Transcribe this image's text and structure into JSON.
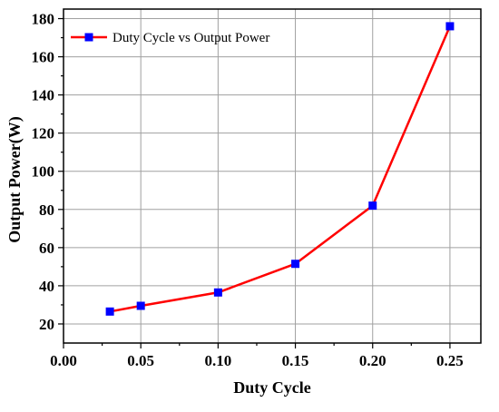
{
  "chart_data": {
    "type": "line",
    "xlabel": "Duty Cycle",
    "ylabel": "Output Power(W)",
    "xlim": [
      0.0,
      0.27
    ],
    "ylim": [
      10,
      185
    ],
    "x_ticks": [
      0.0,
      0.05,
      0.1,
      0.15,
      0.2,
      0.25
    ],
    "x_tick_labels": [
      "0.00",
      "0.05",
      "0.10",
      "0.15",
      "0.20",
      "0.25"
    ],
    "y_ticks": [
      20,
      40,
      60,
      80,
      100,
      120,
      140,
      160,
      180
    ],
    "y_tick_labels": [
      "20",
      "40",
      "60",
      "80",
      "100",
      "120",
      "140",
      "160",
      "180"
    ],
    "grid": true,
    "legend_position": "top-left",
    "series": [
      {
        "name": "Duty Cycle vs Output Power",
        "line_color": "#ff0000",
        "marker_color": "#0000ff",
        "marker": "square",
        "x": [
          0.03,
          0.05,
          0.1,
          0.15,
          0.2,
          0.25
        ],
        "y": [
          26.5,
          29.5,
          36.5,
          51.5,
          82,
          176
        ]
      }
    ]
  }
}
